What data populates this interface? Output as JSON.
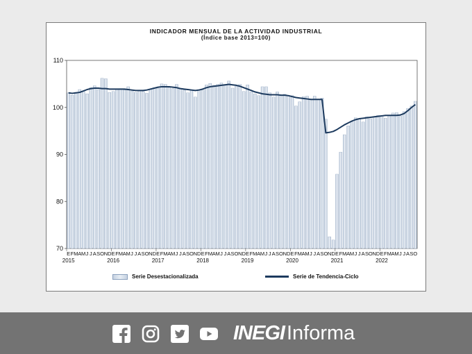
{
  "chart_data": {
    "type": "bar",
    "title": "INDICADOR MENSUAL DE LA ACTIVIDAD INDUSTRIAL",
    "subtitle": "(Índice base 2013=100)",
    "ylim": [
      70,
      110
    ],
    "yticks": [
      70,
      80,
      90,
      100,
      110
    ],
    "month_labels": [
      "E",
      "F",
      "M",
      "A",
      "M",
      "J",
      "J",
      "A",
      "S",
      "O",
      "N",
      "D"
    ],
    "year_labels": [
      "2015",
      "2016",
      "2017",
      "2018",
      "2019",
      "2020",
      "2021",
      "2022"
    ],
    "legend_placement": "bottom",
    "grid": false,
    "series": [
      {
        "name": "Serie Desestacionalizada",
        "type": "bar",
        "values": [
          103.1,
          102.6,
          103.2,
          103.8,
          103.5,
          102.9,
          104.2,
          104.6,
          103.8,
          106.2,
          106.1,
          103.2,
          103.4,
          103.9,
          104.0,
          103.7,
          104.4,
          103.5,
          103.2,
          103.6,
          103.4,
          103.0,
          103.8,
          104.2,
          104.1,
          105.0,
          104.9,
          104.2,
          104.0,
          104.9,
          104.0,
          103.7,
          103.1,
          103.6,
          102.2,
          103.8,
          103.7,
          104.8,
          105.1,
          104.7,
          104.9,
          105.2,
          104.9,
          105.6,
          104.1,
          104.5,
          104.9,
          103.4,
          104.8,
          103.3,
          102.9,
          102.5,
          104.4,
          104.4,
          103.1,
          102.2,
          103.3,
          102.6,
          102.8,
          102.4,
          102.5,
          100.3,
          101.2,
          102.3,
          102.4,
          101.7,
          102.4,
          101.8,
          102.0,
          97.5,
          72.5,
          71.8,
          85.8,
          90.5,
          94.2,
          96.1,
          96.9,
          97.8,
          97.6,
          96.9,
          98.0,
          97.6,
          98.0,
          98.3,
          98.3,
          97.7,
          98.2,
          98.8,
          98.9,
          98.2,
          99.1,
          99.8,
          100.3,
          101.3
        ],
        "color": "#c6d2e1"
      },
      {
        "name": "Serie de Tendencia-Ciclo",
        "type": "line",
        "values": [
          103.1,
          103.0,
          103.1,
          103.2,
          103.5,
          103.8,
          104.0,
          104.1,
          104.1,
          104.0,
          104.0,
          103.9,
          103.9,
          103.9,
          103.9,
          103.9,
          103.8,
          103.7,
          103.6,
          103.6,
          103.6,
          103.7,
          103.9,
          104.1,
          104.3,
          104.4,
          104.4,
          104.4,
          104.3,
          104.2,
          104.0,
          103.9,
          103.8,
          103.7,
          103.6,
          103.7,
          103.9,
          104.2,
          104.4,
          104.5,
          104.6,
          104.7,
          104.8,
          104.9,
          104.8,
          104.7,
          104.5,
          104.2,
          103.9,
          103.6,
          103.3,
          103.1,
          102.9,
          102.8,
          102.7,
          102.7,
          102.7,
          102.6,
          102.6,
          102.5,
          102.3,
          102.1,
          102.0,
          101.9,
          101.8,
          101.7,
          101.7,
          101.7,
          101.7,
          94.6,
          94.7,
          94.9,
          95.3,
          95.8,
          96.3,
          96.7,
          97.1,
          97.4,
          97.6,
          97.7,
          97.8,
          97.9,
          98.0,
          98.1,
          98.2,
          98.3,
          98.3,
          98.3,
          98.3,
          98.4,
          98.7,
          99.3,
          100.0,
          100.6
        ],
        "color": "#1c3a5e"
      }
    ]
  },
  "footer": {
    "social_icons": [
      "facebook-icon",
      "instagram-icon",
      "twitter-icon",
      "youtube-icon"
    ],
    "brand_strong": "INEGI",
    "brand_light": "Informa",
    "background": "#737373"
  }
}
